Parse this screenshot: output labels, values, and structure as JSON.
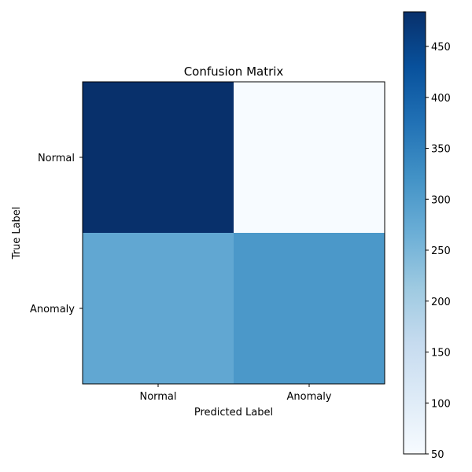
{
  "chart_data": {
    "type": "heatmap",
    "title": "Confusion Matrix",
    "xlabel": "Predicted Label",
    "ylabel": "True Label",
    "x_categories": [
      "Normal",
      "Anomaly"
    ],
    "y_categories": [
      "Normal",
      "Anomaly"
    ],
    "matrix": [
      [
        484,
        50
      ],
      [
        280,
        310
      ]
    ],
    "colormap": "Blues",
    "colorbar": {
      "min": 50,
      "max": 484,
      "ticks": [
        50,
        100,
        150,
        200,
        250,
        300,
        350,
        400,
        450
      ]
    }
  }
}
